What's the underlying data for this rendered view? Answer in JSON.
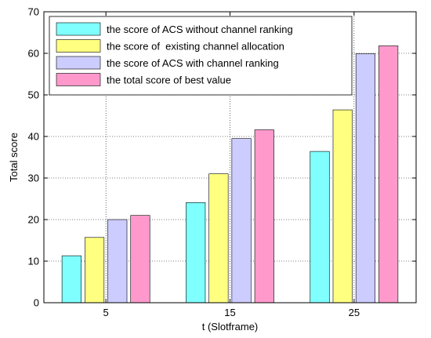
{
  "chart_data": {
    "type": "bar",
    "xlabel": "t (Slotframe)",
    "ylabel": "Total score",
    "ylim": [
      0,
      70
    ],
    "yticks": [
      0,
      10,
      20,
      30,
      40,
      50,
      60,
      70
    ],
    "categories": [
      "5",
      "15",
      "25"
    ],
    "grid": true,
    "legend_position": "top-left",
    "series": [
      {
        "name": "the score of ACS without channel ranking",
        "color": "#80ffff",
        "values": [
          11.3,
          24.1,
          36.4
        ]
      },
      {
        "name": "the score of  existing channel allocation",
        "color": "#ffff80",
        "values": [
          15.7,
          31.0,
          46.4
        ]
      },
      {
        "name": "the score of ACS with channel ranking",
        "color": "#ccccff",
        "values": [
          20.0,
          39.5,
          59.9
        ]
      },
      {
        "name": "the total score of best value",
        "color": "#ff99cc",
        "values": [
          21.0,
          41.6,
          61.8
        ]
      }
    ]
  }
}
